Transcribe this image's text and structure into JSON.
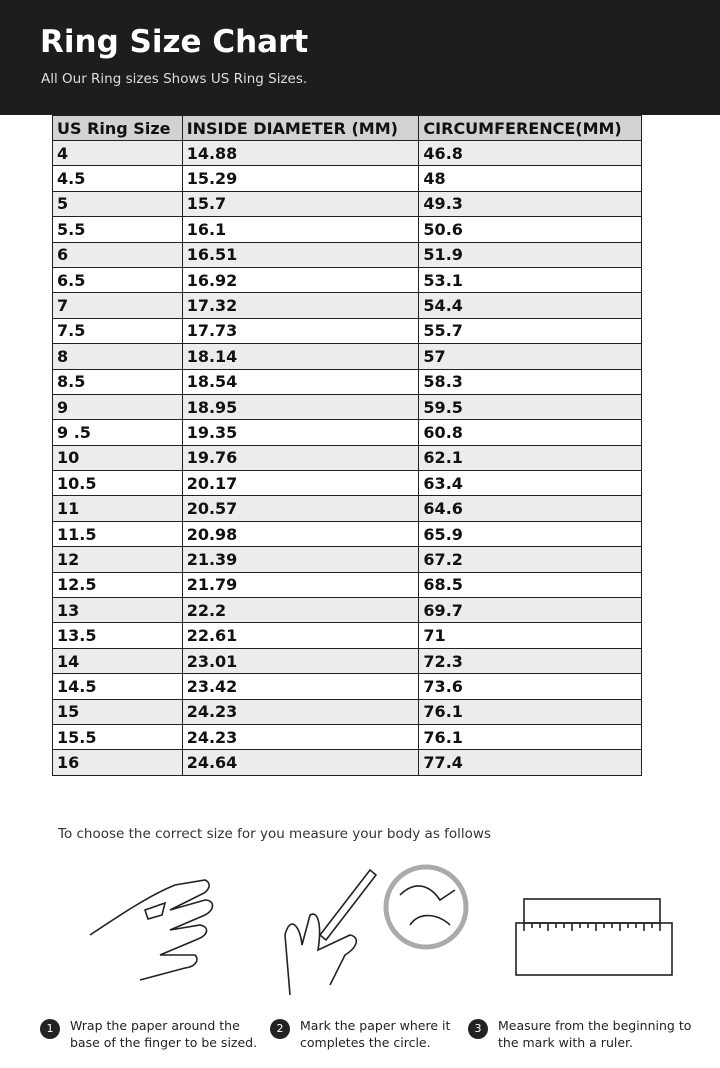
{
  "header": {
    "title": "Ring Size Chart",
    "subtitle": "All Our Ring sizes Shows US Ring Sizes."
  },
  "table": {
    "header": [
      "US Ring Size",
      "INSIDE DIAMETER (MM)",
      "CIRCUMFERENCE(MM)"
    ],
    "rows": [
      [
        "4",
        "14.88",
        "46.8"
      ],
      [
        "4.5",
        "15.29",
        "48"
      ],
      [
        "5",
        "15.7",
        "49.3"
      ],
      [
        "5.5",
        "16.1",
        "50.6"
      ],
      [
        "6",
        "16.51",
        "51.9"
      ],
      [
        "6.5",
        "16.92",
        "53.1"
      ],
      [
        "7",
        "17.32",
        "54.4"
      ],
      [
        "7.5",
        "17.73",
        "55.7"
      ],
      [
        "8",
        "18.14",
        "57"
      ],
      [
        "8.5",
        "18.54",
        "58.3"
      ],
      [
        "9",
        "18.95",
        "59.5"
      ],
      [
        "9 .5",
        "19.35",
        "60.8"
      ],
      [
        "10",
        "19.76",
        "62.1"
      ],
      [
        "10.5",
        "20.17",
        "63.4"
      ],
      [
        "11",
        "20.57",
        "64.6"
      ],
      [
        "11.5",
        "20.98",
        "65.9"
      ],
      [
        "12",
        "21.39",
        "67.2"
      ],
      [
        "12.5",
        "21.79",
        "68.5"
      ],
      [
        "13",
        "22.2",
        "69.7"
      ],
      [
        "13.5",
        "22.61",
        "71"
      ],
      [
        "14",
        "23.01",
        "72.3"
      ],
      [
        "14.5",
        "23.42",
        "73.6"
      ],
      [
        "15",
        "24.23",
        "76.1"
      ],
      [
        "15.5",
        "24.23",
        "76.1"
      ],
      [
        "16",
        "24.64",
        "77.4"
      ]
    ]
  },
  "instructions": "To choose the correct size for you measure your body as follows",
  "steps": [
    {
      "number": "1",
      "text": "Wrap the paper around the base of the finger to be sized."
    },
    {
      "number": "2",
      "text": "Mark the paper where it completes the circle."
    },
    {
      "number": "3",
      "text": "Measure from the beginning to the mark with a ruler."
    }
  ]
}
